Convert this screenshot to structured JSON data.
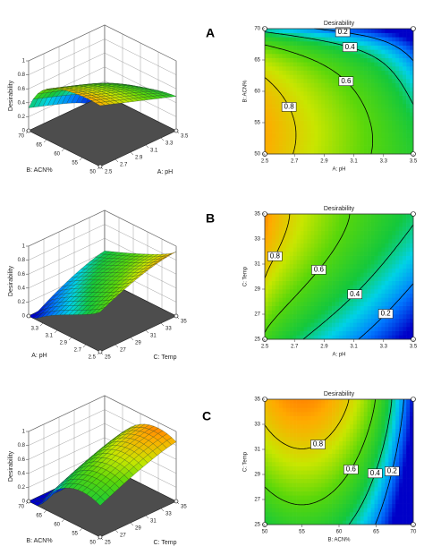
{
  "panel_labels": [
    "A",
    "B",
    "C"
  ],
  "chart_data": [
    {
      "type": "surface",
      "zlabel": "Desirability",
      "xlabel": "A: pH",
      "ylabel": "B: ACN%",
      "xlim": [
        2.5,
        3.5
      ],
      "xticks": [
        2.5,
        2.7,
        2.9,
        3.1,
        3.3,
        3.5
      ],
      "ylim": [
        50,
        70
      ],
      "yticks": [
        50,
        55,
        60,
        65,
        70
      ],
      "zlim": [
        0,
        1
      ],
      "zticks": [
        0,
        0.2,
        0.4,
        0.6,
        0.8,
        1
      ],
      "colormap": "jet"
    },
    {
      "type": "contour",
      "title": "Desirability",
      "xlabel": "A: pH",
      "ylabel": "B: ACN%",
      "xlim": [
        2.5,
        3.5
      ],
      "xticks": [
        2.5,
        2.7,
        2.9,
        3.1,
        3.3,
        3.5
      ],
      "ylim": [
        50,
        70
      ],
      "yticks": [
        50,
        55,
        60,
        65,
        70
      ],
      "levels": [
        0.2,
        0.4,
        0.6,
        0.8
      ],
      "colormap": "jet"
    },
    {
      "type": "surface",
      "zlabel": "Desirability",
      "xlabel": "C: Temp",
      "ylabel": "A: pH",
      "xlim": [
        25,
        35
      ],
      "xticks": [
        25,
        27,
        29,
        31,
        33,
        35
      ],
      "ylim": [
        2.5,
        3.5
      ],
      "yticks": [
        2.5,
        2.7,
        2.9,
        3.1,
        3.3
      ],
      "zlim": [
        0,
        1
      ],
      "zticks": [
        0,
        0.2,
        0.4,
        0.6,
        0.8,
        1
      ],
      "colormap": "jet"
    },
    {
      "type": "contour",
      "title": "Desirability",
      "xlabel": "A: pH",
      "ylabel": "C: Temp",
      "xlim": [
        2.5,
        3.5
      ],
      "xticks": [
        2.5,
        2.7,
        2.9,
        3.1,
        3.3,
        3.5
      ],
      "ylim": [
        25,
        35
      ],
      "yticks": [
        25,
        27,
        29,
        31,
        33,
        35
      ],
      "levels": [
        0.2,
        0.4,
        0.6,
        0.8
      ],
      "colormap": "jet"
    },
    {
      "type": "surface",
      "zlabel": "Desirability",
      "xlabel": "C: Temp",
      "ylabel": "B: ACN%",
      "xlim": [
        25,
        35
      ],
      "xticks": [
        25,
        27,
        29,
        31,
        33,
        35
      ],
      "ylim": [
        50,
        70
      ],
      "yticks": [
        50,
        55,
        60,
        65,
        70
      ],
      "zlim": [
        0,
        1
      ],
      "zticks": [
        0,
        0.2,
        0.4,
        0.6,
        0.8,
        1
      ],
      "colormap": "jet"
    },
    {
      "type": "contour",
      "title": "Desirability",
      "xlabel": "B: ACN%",
      "ylabel": "C: Temp",
      "xlim": [
        50,
        70
      ],
      "xticks": [
        50,
        55,
        60,
        65,
        70
      ],
      "ylim": [
        25,
        35
      ],
      "yticks": [
        25,
        27,
        29,
        31,
        33,
        35
      ],
      "levels": [
        0.2,
        0.4,
        0.6,
        0.8
      ],
      "colormap": "jet"
    }
  ]
}
